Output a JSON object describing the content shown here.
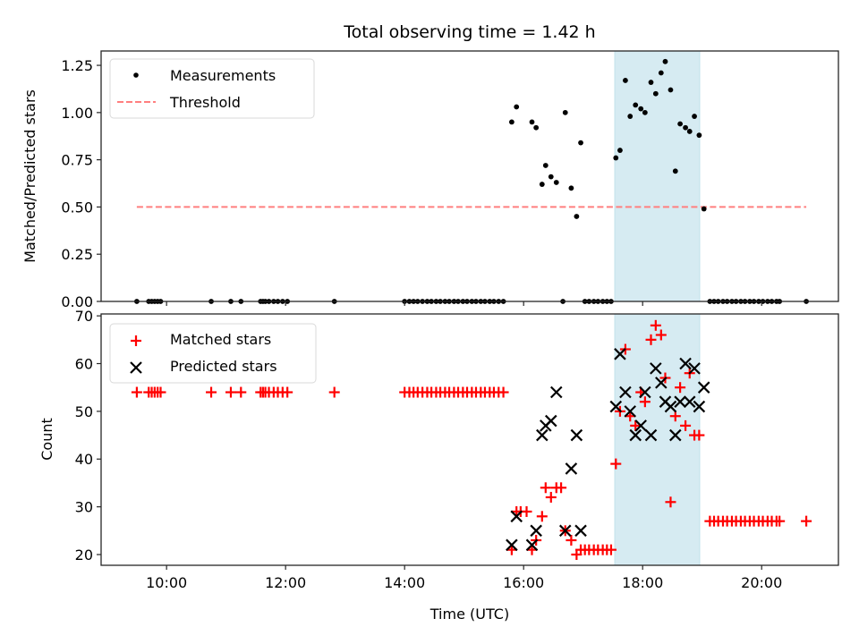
{
  "chart_data": [
    {
      "type": "scatter",
      "panel": "top",
      "title": "Total observing time = 1.42 h",
      "xlabel": "",
      "ylabel": "Matched/Predicted stars",
      "xlim_hours": [
        8.9,
        21.29
      ],
      "ylim": [
        0,
        1.326
      ],
      "yticks": [
        0.0,
        0.25,
        0.5,
        0.75,
        1.0,
        1.25
      ],
      "ytick_labels": [
        "0.00",
        "0.25",
        "0.50",
        "0.75",
        "1.00",
        "1.25"
      ],
      "xticks_hours": [
        10,
        12,
        14,
        16,
        18,
        20
      ],
      "grid": false,
      "legend": {
        "placement": "upper-left",
        "entries": [
          {
            "label": "Measurements",
            "marker": "dot",
            "color": "#000000"
          },
          {
            "label": "Threshold",
            "marker": "dashed-line",
            "color": "#ff7f7f"
          }
        ]
      },
      "threshold": {
        "y": 0.5,
        "x_range_hours": [
          9.5,
          20.75
        ],
        "color": "#ff7f7f"
      },
      "highlight_span_hours": [
        17.53,
        18.96
      ],
      "highlight_color": "#add8e6",
      "series": [
        {
          "name": "Measurements",
          "color": "#000000",
          "points": [
            [
              9.5,
              0
            ],
            [
              9.7,
              0
            ],
            [
              9.75,
              0
            ],
            [
              9.8,
              0
            ],
            [
              9.85,
              0
            ],
            [
              9.9,
              0
            ],
            [
              10.75,
              0
            ],
            [
              11.08,
              0
            ],
            [
              11.25,
              0
            ],
            [
              11.58,
              0
            ],
            [
              11.62,
              0
            ],
            [
              11.66,
              0
            ],
            [
              11.72,
              0
            ],
            [
              11.8,
              0
            ],
            [
              11.87,
              0
            ],
            [
              11.95,
              0
            ],
            [
              12.03,
              0
            ],
            [
              12.82,
              0
            ],
            [
              14.0,
              0
            ],
            [
              14.08,
              0
            ],
            [
              14.15,
              0
            ],
            [
              14.22,
              0
            ],
            [
              14.3,
              0
            ],
            [
              14.38,
              0
            ],
            [
              14.45,
              0
            ],
            [
              14.53,
              0
            ],
            [
              14.6,
              0
            ],
            [
              14.68,
              0
            ],
            [
              14.75,
              0
            ],
            [
              14.83,
              0
            ],
            [
              14.9,
              0
            ],
            [
              14.98,
              0
            ],
            [
              15.05,
              0
            ],
            [
              15.13,
              0
            ],
            [
              15.2,
              0
            ],
            [
              15.28,
              0
            ],
            [
              15.35,
              0
            ],
            [
              15.43,
              0
            ],
            [
              15.5,
              0
            ],
            [
              15.58,
              0
            ],
            [
              15.66,
              0
            ],
            [
              15.8,
              0.95
            ],
            [
              15.88,
              1.03
            ],
            [
              16.14,
              0.95
            ],
            [
              16.21,
              0.92
            ],
            [
              16.31,
              0.62
            ],
            [
              16.37,
              0.72
            ],
            [
              16.46,
              0.66
            ],
            [
              16.55,
              0.63
            ],
            [
              16.66,
              0.0
            ],
            [
              16.7,
              1.0
            ],
            [
              16.8,
              0.6
            ],
            [
              16.89,
              0.45
            ],
            [
              16.96,
              0.84
            ],
            [
              17.03,
              0
            ],
            [
              17.1,
              0
            ],
            [
              17.18,
              0
            ],
            [
              17.25,
              0
            ],
            [
              17.33,
              0
            ],
            [
              17.4,
              0
            ],
            [
              17.47,
              0
            ],
            [
              17.55,
              0.76
            ],
            [
              17.62,
              0.8
            ],
            [
              17.71,
              1.17
            ],
            [
              17.79,
              0.98
            ],
            [
              17.88,
              1.04
            ],
            [
              17.97,
              1.02
            ],
            [
              18.04,
              1.0
            ],
            [
              18.14,
              1.16
            ],
            [
              18.22,
              1.1
            ],
            [
              18.31,
              1.21
            ],
            [
              18.38,
              1.27
            ],
            [
              18.47,
              1.12
            ],
            [
              18.55,
              0.69
            ],
            [
              18.63,
              0.94
            ],
            [
              18.72,
              0.92
            ],
            [
              18.79,
              0.9
            ],
            [
              18.87,
              0.98
            ],
            [
              18.95,
              0.88
            ],
            [
              19.03,
              0.49
            ],
            [
              19.13,
              0
            ],
            [
              19.2,
              0
            ],
            [
              19.27,
              0
            ],
            [
              19.35,
              0
            ],
            [
              19.42,
              0
            ],
            [
              19.5,
              0
            ],
            [
              19.57,
              0
            ],
            [
              19.65,
              0
            ],
            [
              19.72,
              0
            ],
            [
              19.8,
              0
            ],
            [
              19.87,
              0
            ],
            [
              19.95,
              0
            ],
            [
              20.02,
              0
            ],
            [
              20.1,
              0
            ],
            [
              20.17,
              0
            ],
            [
              20.25,
              0
            ],
            [
              20.3,
              0
            ],
            [
              20.75,
              0
            ]
          ]
        }
      ]
    },
    {
      "type": "scatter",
      "panel": "bottom",
      "title": "",
      "xlabel": "Time (UTC)",
      "ylabel": "Count",
      "xlim_hours": [
        8.9,
        21.29
      ],
      "ylim": [
        17.75,
        70.4
      ],
      "yticks": [
        20,
        30,
        40,
        50,
        60,
        70
      ],
      "ytick_labels": [
        "20",
        "30",
        "40",
        "50",
        "60",
        "70"
      ],
      "xticks_hours": [
        10,
        12,
        14,
        16,
        18,
        20
      ],
      "xtick_labels": [
        "10:00",
        "12:00",
        "14:00",
        "16:00",
        "18:00",
        "20:00"
      ],
      "grid": false,
      "legend": {
        "placement": "upper-left",
        "entries": [
          {
            "label": "Matched stars",
            "marker": "plus",
            "color": "#ff0000"
          },
          {
            "label": "Predicted stars",
            "marker": "x",
            "color": "#000000"
          }
        ]
      },
      "highlight_span_hours": [
        17.53,
        18.96
      ],
      "highlight_color": "#add8e6",
      "series": [
        {
          "name": "Matched stars",
          "marker": "plus",
          "color": "#ff0000",
          "points": [
            [
              9.5,
              54
            ],
            [
              9.7,
              54
            ],
            [
              9.75,
              54
            ],
            [
              9.8,
              54
            ],
            [
              9.85,
              54
            ],
            [
              9.9,
              54
            ],
            [
              10.75,
              54
            ],
            [
              11.08,
              54
            ],
            [
              11.25,
              54
            ],
            [
              11.58,
              54
            ],
            [
              11.62,
              54
            ],
            [
              11.66,
              54
            ],
            [
              11.72,
              54
            ],
            [
              11.8,
              54
            ],
            [
              11.87,
              54
            ],
            [
              11.95,
              54
            ],
            [
              12.03,
              54
            ],
            [
              12.82,
              54
            ],
            [
              14.0,
              54
            ],
            [
              14.08,
              54
            ],
            [
              14.15,
              54
            ],
            [
              14.22,
              54
            ],
            [
              14.3,
              54
            ],
            [
              14.38,
              54
            ],
            [
              14.45,
              54
            ],
            [
              14.53,
              54
            ],
            [
              14.6,
              54
            ],
            [
              14.68,
              54
            ],
            [
              14.75,
              54
            ],
            [
              14.83,
              54
            ],
            [
              14.9,
              54
            ],
            [
              14.98,
              54
            ],
            [
              15.05,
              54
            ],
            [
              15.13,
              54
            ],
            [
              15.2,
              54
            ],
            [
              15.28,
              54
            ],
            [
              15.35,
              54
            ],
            [
              15.43,
              54
            ],
            [
              15.5,
              54
            ],
            [
              15.58,
              54
            ],
            [
              15.66,
              54
            ],
            [
              15.8,
              21
            ],
            [
              15.88,
              29
            ],
            [
              15.95,
              29
            ],
            [
              16.05,
              29
            ],
            [
              16.14,
              21
            ],
            [
              16.21,
              23
            ],
            [
              16.31,
              28
            ],
            [
              16.37,
              34
            ],
            [
              16.46,
              32
            ],
            [
              16.55,
              34
            ],
            [
              16.63,
              34
            ],
            [
              16.7,
              25
            ],
            [
              16.8,
              23
            ],
            [
              16.89,
              20
            ],
            [
              16.96,
              21
            ],
            [
              17.03,
              21
            ],
            [
              17.1,
              21
            ],
            [
              17.18,
              21
            ],
            [
              17.25,
              21
            ],
            [
              17.33,
              21
            ],
            [
              17.4,
              21
            ],
            [
              17.47,
              21
            ],
            [
              17.55,
              39
            ],
            [
              17.62,
              50
            ],
            [
              17.71,
              63
            ],
            [
              17.79,
              49
            ],
            [
              17.88,
              47
            ],
            [
              17.97,
              54
            ],
            [
              18.04,
              52
            ],
            [
              18.14,
              65
            ],
            [
              18.22,
              68
            ],
            [
              18.31,
              66
            ],
            [
              18.38,
              57
            ],
            [
              18.47,
              31
            ],
            [
              18.55,
              49
            ],
            [
              18.63,
              55
            ],
            [
              18.72,
              47
            ],
            [
              18.79,
              58
            ],
            [
              18.87,
              45
            ],
            [
              18.95,
              45
            ],
            [
              19.13,
              27
            ],
            [
              19.2,
              27
            ],
            [
              19.27,
              27
            ],
            [
              19.35,
              27
            ],
            [
              19.42,
              27
            ],
            [
              19.5,
              27
            ],
            [
              19.57,
              27
            ],
            [
              19.65,
              27
            ],
            [
              19.72,
              27
            ],
            [
              19.8,
              27
            ],
            [
              19.87,
              27
            ],
            [
              19.95,
              27
            ],
            [
              20.02,
              27
            ],
            [
              20.1,
              27
            ],
            [
              20.17,
              27
            ],
            [
              20.25,
              27
            ],
            [
              20.3,
              27
            ],
            [
              20.75,
              27
            ]
          ]
        },
        {
          "name": "Predicted stars",
          "marker": "x",
          "color": "#000000",
          "points": [
            [
              15.8,
              22
            ],
            [
              15.88,
              28
            ],
            [
              16.14,
              22
            ],
            [
              16.21,
              25
            ],
            [
              16.31,
              45
            ],
            [
              16.37,
              47
            ],
            [
              16.46,
              48
            ],
            [
              16.55,
              54
            ],
            [
              16.7,
              25
            ],
            [
              16.8,
              38
            ],
            [
              16.89,
              45
            ],
            [
              16.96,
              25
            ],
            [
              17.55,
              51
            ],
            [
              17.62,
              62
            ],
            [
              17.71,
              54
            ],
            [
              17.79,
              50
            ],
            [
              17.88,
              45
            ],
            [
              17.97,
              47
            ],
            [
              18.04,
              54
            ],
            [
              18.14,
              45
            ],
            [
              18.22,
              59
            ],
            [
              18.31,
              56
            ],
            [
              18.38,
              52
            ],
            [
              18.47,
              51
            ],
            [
              18.55,
              45
            ],
            [
              18.63,
              52
            ],
            [
              18.72,
              60
            ],
            [
              18.79,
              52
            ],
            [
              18.87,
              59
            ],
            [
              18.95,
              51
            ],
            [
              19.03,
              55
            ]
          ]
        }
      ]
    }
  ]
}
